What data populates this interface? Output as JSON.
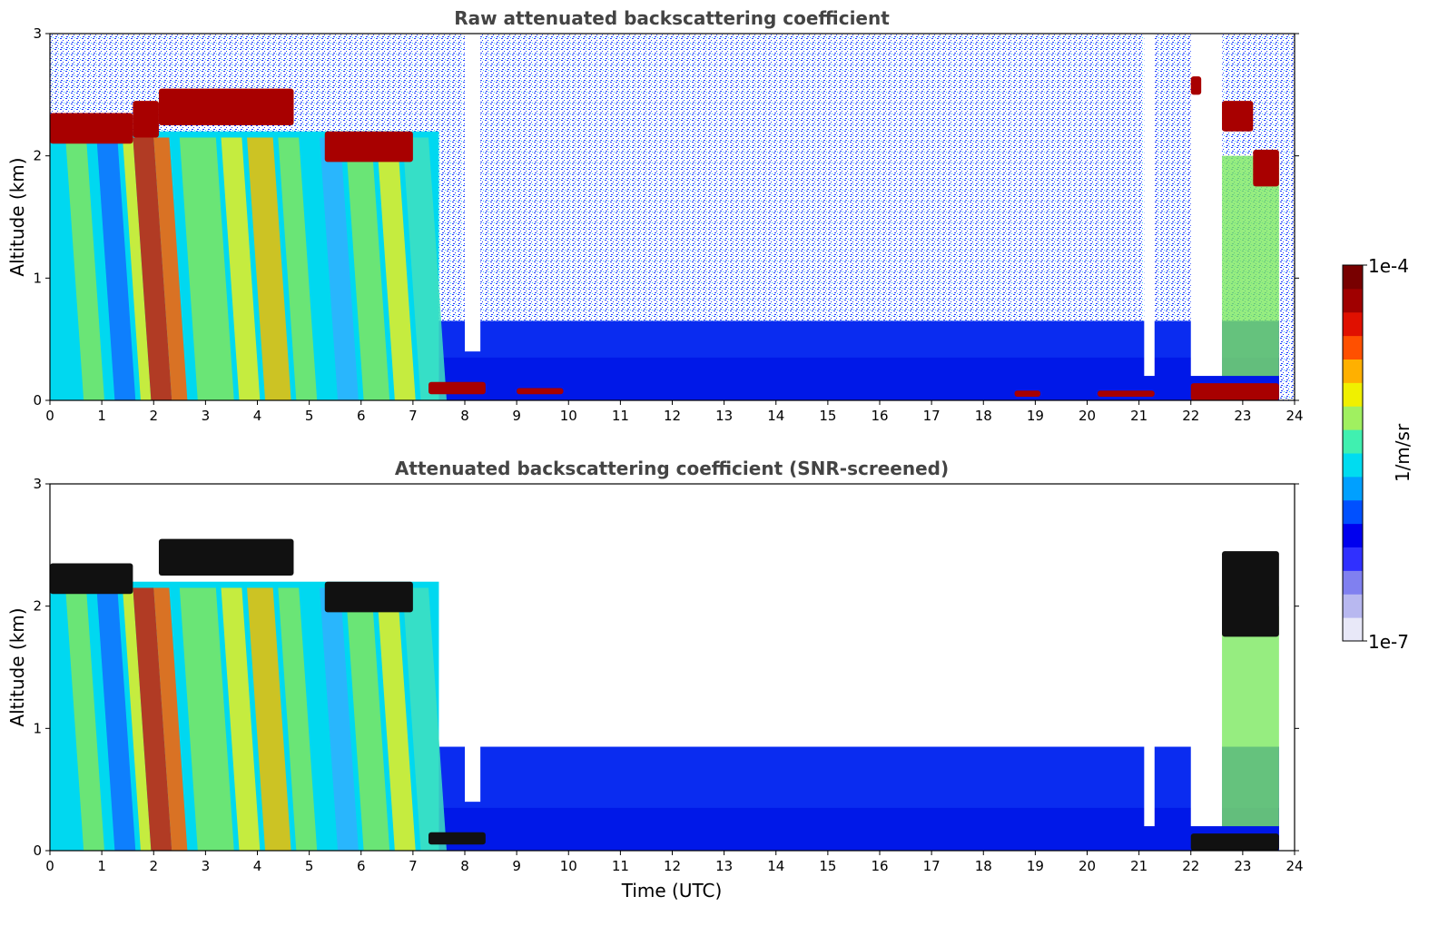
{
  "chart_data": [
    {
      "type": "heatmap",
      "title": "Raw attenuated backscattering coefficient",
      "xlabel": "",
      "ylabel": "Altitude (km)",
      "xlim": [
        0,
        24
      ],
      "ylim": [
        0,
        3
      ],
      "xticks": [
        "0",
        "1",
        "2",
        "3",
        "4",
        "5",
        "6",
        "7",
        "8",
        "9",
        "10",
        "11",
        "12",
        "13",
        "14",
        "15",
        "16",
        "17",
        "18",
        "19",
        "20",
        "21",
        "22",
        "23",
        "24"
      ],
      "yticks": [
        "0",
        "1",
        "2",
        "3"
      ],
      "features": [
        {
          "name": "cloud-layer",
          "t0": 0.0,
          "t1": 1.6,
          "z0": 2.1,
          "z1": 2.35
        },
        {
          "name": "cloud-layer",
          "t0": 1.6,
          "t1": 2.1,
          "z0": 2.15,
          "z1": 2.45
        },
        {
          "name": "cloud-layer",
          "t0": 2.1,
          "t1": 4.7,
          "z0": 2.25,
          "z1": 2.55
        },
        {
          "name": "cloud-layer",
          "t0": 5.3,
          "t1": 7.0,
          "z0": 1.95,
          "z1": 2.2
        },
        {
          "name": "cloud-layer",
          "t0": 22.0,
          "t1": 22.2,
          "z0": 2.5,
          "z1": 2.65
        },
        {
          "name": "cloud-layer",
          "t0": 22.6,
          "t1": 23.2,
          "z0": 2.2,
          "z1": 2.45
        },
        {
          "name": "cloud-layer",
          "t0": 23.2,
          "t1": 23.7,
          "z0": 1.75,
          "z1": 2.05
        },
        {
          "name": "surface-return",
          "t0": 7.3,
          "t1": 8.4,
          "z0": 0.05,
          "z1": 0.15
        },
        {
          "name": "surface-return",
          "t0": 9.0,
          "t1": 9.9,
          "z0": 0.05,
          "z1": 0.1
        },
        {
          "name": "surface-return",
          "t0": 18.6,
          "t1": 19.1,
          "z0": 0.03,
          "z1": 0.08
        },
        {
          "name": "surface-return",
          "t0": 20.2,
          "t1": 21.3,
          "z0": 0.03,
          "z1": 0.08
        },
        {
          "name": "surface-return",
          "t0": 22.0,
          "t1": 23.7,
          "z0": 0.0,
          "z1": 0.14
        }
      ]
    },
    {
      "type": "heatmap",
      "title": "Attenuated backscattering coefficient (SNR-screened)",
      "xlabel": "Time (UTC)",
      "ylabel": "Altitude (km)",
      "xlim": [
        0,
        24
      ],
      "ylim": [
        0,
        3
      ],
      "xticks": [
        "0",
        "1",
        "2",
        "3",
        "4",
        "5",
        "6",
        "7",
        "8",
        "9",
        "10",
        "11",
        "12",
        "13",
        "14",
        "15",
        "16",
        "17",
        "18",
        "19",
        "20",
        "21",
        "22",
        "23",
        "24"
      ],
      "yticks": [
        "0",
        "1",
        "2",
        "3"
      ],
      "features": [
        {
          "name": "cloud-layer",
          "t0": 0.0,
          "t1": 1.6,
          "z0": 2.1,
          "z1": 2.35
        },
        {
          "name": "cloud-layer",
          "t0": 2.1,
          "t1": 4.7,
          "z0": 2.25,
          "z1": 2.55
        },
        {
          "name": "cloud-layer",
          "t0": 5.3,
          "t1": 7.0,
          "z0": 1.95,
          "z1": 2.2
        },
        {
          "name": "cloud-layer",
          "t0": 22.6,
          "t1": 23.7,
          "z0": 1.75,
          "z1": 2.45
        },
        {
          "name": "surface-return",
          "t0": 7.3,
          "t1": 8.4,
          "z0": 0.05,
          "z1": 0.15
        },
        {
          "name": "surface-return",
          "t0": 22.0,
          "t1": 23.7,
          "z0": 0.0,
          "z1": 0.14
        }
      ]
    }
  ],
  "colorbar": {
    "label": "1/m/sr",
    "max_label": "1e-4",
    "min_label": "1e-7",
    "colors": [
      "#e8e8f8",
      "#b8b8f0",
      "#8080f0",
      "#3030ff",
      "#0000ee",
      "#0050ff",
      "#00a0ff",
      "#00dcf0",
      "#40f0b0",
      "#a0f060",
      "#f0f000",
      "#ffb000",
      "#ff5000",
      "#e01000",
      "#a00000",
      "#780000"
    ]
  },
  "colors": {
    "noise": "#1a3cff",
    "boundary_layer": "#0a2cf0",
    "aerosol_cyan": "#00d8f0",
    "aerosol_green": "#7ce860",
    "aerosol_yellow": "#e8f020",
    "cloud_red": "#a80000",
    "cloud_black": "#111111",
    "title_text": "#444444"
  }
}
